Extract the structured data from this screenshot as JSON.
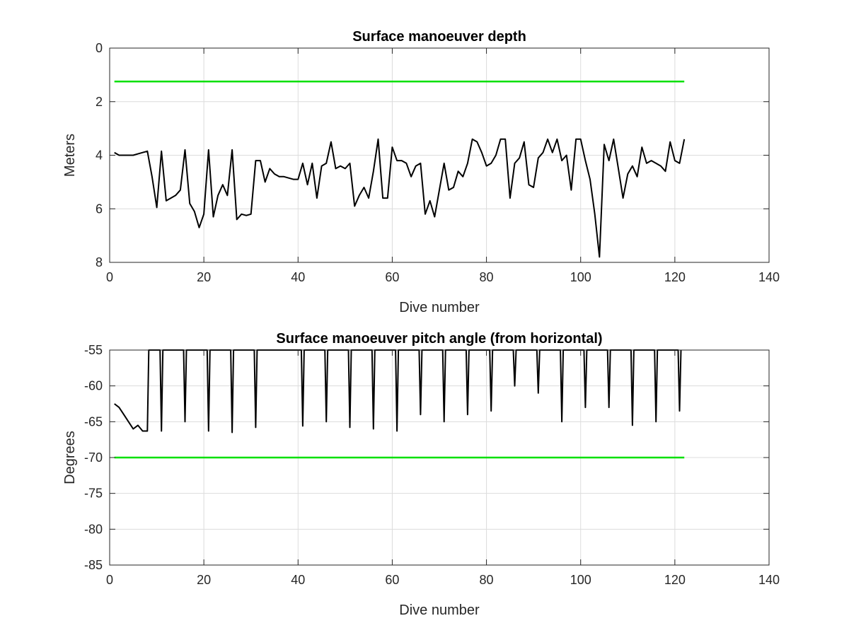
{
  "chart_data": [
    {
      "type": "line",
      "title": "Surface manoeuver depth",
      "xlabel": "Dive number",
      "ylabel": "Meters",
      "xlim": [
        0,
        140
      ],
      "ylim": [
        0,
        8
      ],
      "y_reversed": true,
      "grid": true,
      "xticks": [
        "0",
        "20",
        "40",
        "60",
        "80",
        "100",
        "120",
        "140"
      ],
      "yticks": [
        "0",
        "2",
        "4",
        "6",
        "8"
      ],
      "series": [
        {
          "color": "#00e000",
          "x": [
            1,
            122
          ],
          "y": [
            1.25,
            1.25
          ]
        },
        {
          "color": "#000000",
          "x": [
            1,
            2,
            3,
            4,
            5,
            6,
            7,
            8,
            9,
            10,
            11,
            12,
            13,
            14,
            15,
            16,
            17,
            18,
            19,
            20,
            21,
            22,
            23,
            24,
            25,
            26,
            27,
            28,
            29,
            30,
            31,
            32,
            33,
            34,
            35,
            36,
            37,
            38,
            39,
            40,
            41,
            42,
            43,
            44,
            45,
            46,
            47,
            48,
            49,
            50,
            51,
            52,
            53,
            54,
            55,
            56,
            57,
            58,
            59,
            60,
            61,
            62,
            63,
            64,
            65,
            66,
            67,
            68,
            69,
            70,
            71,
            72,
            73,
            74,
            75,
            76,
            77,
            78,
            79,
            80,
            81,
            82,
            83,
            84,
            85,
            86,
            87,
            88,
            89,
            90,
            91,
            92,
            93,
            94,
            95,
            96,
            97,
            98,
            99,
            100,
            101,
            102,
            103,
            104,
            105,
            106,
            107,
            108,
            109,
            110,
            111,
            112,
            113,
            114,
            115,
            116,
            117,
            118,
            119,
            120,
            121,
            122
          ],
          "y": [
            3.9,
            4.0,
            4.0,
            4.0,
            4.0,
            3.95,
            3.9,
            3.85,
            4.8,
            5.95,
            3.85,
            5.7,
            5.6,
            5.5,
            5.3,
            3.8,
            5.8,
            6.1,
            6.7,
            6.2,
            3.8,
            6.3,
            5.5,
            5.1,
            5.5,
            3.8,
            6.4,
            6.2,
            6.25,
            6.2,
            4.2,
            4.2,
            5.0,
            4.5,
            4.7,
            4.8,
            4.8,
            4.85,
            4.9,
            4.9,
            4.3,
            5.1,
            4.3,
            5.6,
            4.4,
            4.3,
            3.5,
            4.5,
            4.4,
            4.5,
            4.3,
            5.9,
            5.5,
            5.2,
            5.6,
            4.6,
            3.4,
            5.6,
            5.6,
            3.7,
            4.2,
            4.2,
            4.3,
            4.8,
            4.4,
            4.3,
            6.2,
            5.7,
            6.3,
            5.3,
            4.3,
            5.3,
            5.2,
            4.6,
            4.8,
            4.3,
            3.4,
            3.5,
            3.9,
            4.4,
            4.3,
            4.0,
            3.4,
            3.4,
            5.6,
            4.3,
            4.1,
            3.5,
            5.1,
            5.2,
            4.1,
            3.9,
            3.4,
            3.9,
            3.4,
            4.2,
            4.0,
            5.3,
            3.4,
            3.4,
            4.2,
            4.9,
            6.2,
            7.8,
            3.6,
            4.2,
            3.4,
            4.5,
            5.6,
            4.7,
            4.4,
            4.8,
            3.7,
            4.3,
            4.2,
            4.3,
            4.4,
            4.6,
            3.5,
            4.2,
            4.3,
            3.4
          ]
        }
      ]
    },
    {
      "type": "line",
      "title": "Surface manoeuver pitch angle (from horizontal)",
      "xlabel": "Dive number",
      "ylabel": "Degrees",
      "xlim": [
        0,
        140
      ],
      "ylim": [
        -85,
        -55
      ],
      "grid": true,
      "xticks": [
        "0",
        "20",
        "40",
        "60",
        "80",
        "100",
        "120",
        "140"
      ],
      "yticks": [
        "-55",
        "-60",
        "-65",
        "-70",
        "-75",
        "-80",
        "-85"
      ],
      "series": [
        {
          "color": "#00e000",
          "x": [
            1,
            122
          ],
          "y": [
            -70,
            -70
          ]
        },
        {
          "color": "#000000",
          "x": [
            1,
            2,
            3,
            4,
            5,
            6,
            7,
            8,
            8.3,
            10.7,
            11,
            11.3,
            15.7,
            16,
            16.3,
            20.7,
            21,
            21.3,
            25.7,
            26,
            26.3,
            30.7,
            31,
            31.3,
            40.7,
            41,
            41.3,
            45.7,
            46,
            46.3,
            50.7,
            51,
            51.3,
            55.7,
            56,
            56.3,
            60.7,
            61,
            61.3,
            65.7,
            66,
            66.3,
            70.7,
            71,
            71.3,
            75.7,
            76,
            76.3,
            80.7,
            81,
            81.3,
            85.7,
            86,
            86.3,
            90.7,
            91,
            91.3,
            95.7,
            96,
            96.3,
            100.7,
            101,
            101.3,
            105.7,
            106,
            106.3,
            110.7,
            111,
            111.3,
            115.7,
            116,
            116.3,
            120.7,
            121,
            121.3
          ],
          "y": [
            -62.5,
            -63,
            -64,
            -65,
            -66,
            -65.5,
            -66.3,
            -66.3,
            -55,
            -55,
            -66.3,
            -55,
            -55,
            -65,
            -55,
            -55,
            -66.3,
            -55,
            -55,
            -66.5,
            -55,
            -55,
            -65.8,
            -55,
            -55,
            -65.6,
            -55,
            -55,
            -65,
            -55,
            -55,
            -65.8,
            -55,
            -55,
            -66,
            -55,
            -55,
            -66.3,
            -55,
            -55,
            -64,
            -55,
            -55,
            -65,
            -55,
            -55,
            -64,
            -55,
            -55,
            -63.5,
            -55,
            -55,
            -60,
            -55,
            -55,
            -61,
            -55,
            -55,
            -65,
            -55,
            -55,
            -63,
            -55,
            -55,
            -63,
            -55,
            -55,
            -65.5,
            -55,
            -55,
            -65,
            -55,
            -55,
            -63.5,
            -55
          ]
        }
      ]
    }
  ]
}
